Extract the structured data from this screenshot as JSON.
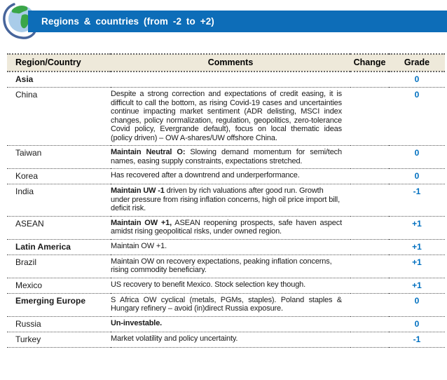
{
  "banner": {
    "title": "Regions & countries (from -2 to +2)"
  },
  "colors": {
    "banner_bg": "#0d6db8",
    "header_bg": "#eee9da",
    "grade_text": "#0070c0",
    "globe_sea": "#a9cce9",
    "globe_land": "#3aa648",
    "globe_ring": "#47659b"
  },
  "icons": {
    "globe": "globe-icon"
  },
  "table": {
    "columns": [
      "Region/Country",
      "Comments",
      "Change",
      "Grade"
    ],
    "rows": [
      {
        "name": "Asia",
        "comment_bold": "",
        "comment": "",
        "change": "",
        "grade": "0",
        "is_region": true,
        "justify": false
      },
      {
        "name": "China",
        "comment_bold": "",
        "comment": "Despite a strong correction and expectations of credit easing, it is difficult to call the bottom, as rising Covid-19 cases and uncertainties continue impacting market sentiment (ADR delisting, MSCI index changes, policy normalization, regulation, geopolitics, zero-tolerance Covid policy, Evergrande default), focus on local thematic ideas (policy driven) – OW A-shares/UW offshore China.",
        "change": "",
        "grade": "0",
        "is_region": false,
        "justify": true
      },
      {
        "name": "Taiwan",
        "comment_bold": "Maintain Neutral O:",
        "comment": " Slowing demand momentum for semi/tech names, easing supply constraints, expectations stretched.",
        "change": "",
        "grade": "0",
        "is_region": false,
        "justify": true
      },
      {
        "name": "Korea",
        "comment_bold": "",
        "comment": "Has recovered after a downtrend and underperformance.",
        "change": "",
        "grade": "0",
        "is_region": false,
        "justify": false
      },
      {
        "name": "India",
        "comment_bold": "Maintain UW -1",
        "comment": " driven by rich valuations after good run. Growth under pressure from rising inflation concerns, high oil price import bill, deficit risk.",
        "change": "",
        "grade": "-1",
        "is_region": false,
        "justify": false
      },
      {
        "name": "ASEAN",
        "comment_bold": "Maintain OW +1,",
        "comment": " ASEAN reopening prospects, safe haven aspect amidst rising geopolitical risks, under owned region.",
        "change": "",
        "grade": "+1",
        "is_region": false,
        "justify": true
      },
      {
        "name": "Latin America",
        "comment_bold": "",
        "comment": "Maintain OW +1.",
        "change": "",
        "grade": "+1",
        "is_region": true,
        "justify": false
      },
      {
        "name": "Brazil",
        "comment_bold": "",
        "comment": "Maintain OW on recovery expectations, peaking inflation concerns, rising commodity beneficiary.",
        "change": "",
        "grade": "+1",
        "is_region": false,
        "justify": false
      },
      {
        "name": "Mexico",
        "comment_bold": "",
        "comment": "US recovery to benefit Mexico. Stock selection key though.",
        "change": "",
        "grade": "+1",
        "is_region": false,
        "justify": false
      },
      {
        "name": "Emerging Europe",
        "comment_bold": "",
        "comment": "S Africa OW cyclical (metals, PGMs, staples). Poland staples & Hungary refinery – avoid (in)direct Russia exposure.",
        "change": "",
        "grade": "0",
        "is_region": true,
        "justify": true
      },
      {
        "name": "Russia",
        "comment_bold": "Un-investable.",
        "comment": "",
        "change": "",
        "grade": "0",
        "is_region": false,
        "justify": false
      },
      {
        "name": "Turkey",
        "comment_bold": "",
        "comment": "Market volatility and policy uncertainty.",
        "change": "",
        "grade": "-1",
        "is_region": false,
        "justify": false
      }
    ]
  }
}
